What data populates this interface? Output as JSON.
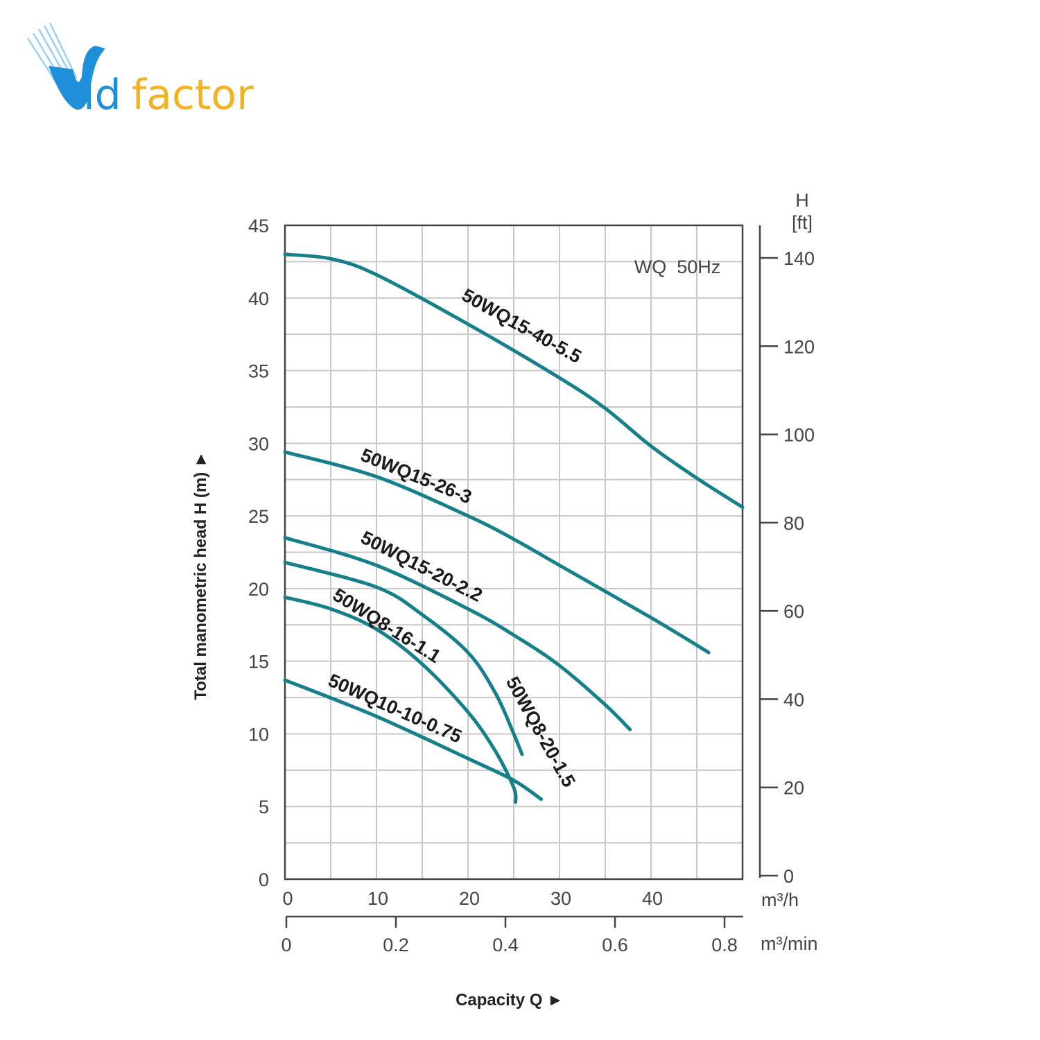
{
  "logo": {
    "text": "Vidfactor",
    "part1": "id",
    "part2": "factor"
  },
  "chart_data": {
    "type": "line",
    "title": "WQ  50Hz",
    "xlabel": "Capacity Q ►",
    "ylabel": "Total manometric head H (m) ►",
    "x_unit": "m³/h",
    "x2_unit": "m³/min",
    "y2_title": "H",
    "y2_unit": "[ft]",
    "xlim": [
      0,
      50
    ],
    "ylim": [
      0,
      45
    ],
    "grid": true,
    "x_ticks": [
      0,
      10,
      20,
      30,
      40
    ],
    "y_ticks": [
      0,
      5,
      10,
      15,
      20,
      25,
      30,
      35,
      40,
      45
    ],
    "x2_ticks": [
      "0",
      "0.2",
      "0.4",
      "0.6",
      "0.8"
    ],
    "x2_tick_values": [
      0,
      0.2,
      0.4,
      0.6,
      0.8
    ],
    "y2_ticks": [
      0,
      20,
      40,
      60,
      80,
      100,
      120,
      140
    ],
    "color": "#16808a",
    "series": [
      {
        "name": "50WQ15-40-5.5",
        "points": [
          [
            0,
            43
          ],
          [
            5,
            42.7
          ],
          [
            10,
            41.6
          ],
          [
            20,
            38.2
          ],
          [
            30,
            34.5
          ],
          [
            35,
            32.4
          ],
          [
            40,
            29.8
          ],
          [
            45,
            27.6
          ],
          [
            50,
            25.6
          ]
        ]
      },
      {
        "name": "50WQ15-26-3",
        "points": [
          [
            0,
            29.4
          ],
          [
            10,
            27.7
          ],
          [
            20,
            25
          ],
          [
            25,
            23.4
          ],
          [
            30,
            21.6
          ],
          [
            40,
            18
          ],
          [
            46.3,
            15.6
          ]
        ]
      },
      {
        "name": "50WQ15-20-2.2",
        "points": [
          [
            0,
            23.5
          ],
          [
            10,
            21.6
          ],
          [
            20,
            18.6
          ],
          [
            25,
            16.8
          ],
          [
            30,
            14.7
          ],
          [
            35,
            12
          ],
          [
            37.7,
            10.3
          ]
        ]
      },
      {
        "name": "50WQ8-20-1.5",
        "points": [
          [
            0,
            21.8
          ],
          [
            10,
            20.1
          ],
          [
            15,
            18.2
          ],
          [
            20,
            15.6
          ],
          [
            23,
            12.8
          ],
          [
            25,
            10
          ],
          [
            25.9,
            8.6
          ]
        ]
      },
      {
        "name": "50WQ8-16-1.1",
        "points": [
          [
            0,
            19.4
          ],
          [
            5,
            18.6
          ],
          [
            10,
            17.2
          ],
          [
            15,
            14.8
          ],
          [
            20,
            11.5
          ],
          [
            23,
            8.8
          ],
          [
            25,
            6.3
          ],
          [
            25.2,
            5.3
          ]
        ]
      },
      {
        "name": "50WQ10-10-0.75",
        "points": [
          [
            0,
            13.7
          ],
          [
            10,
            11.2
          ],
          [
            20,
            8.3
          ],
          [
            25,
            6.8
          ],
          [
            28,
            5.5
          ]
        ]
      }
    ]
  }
}
